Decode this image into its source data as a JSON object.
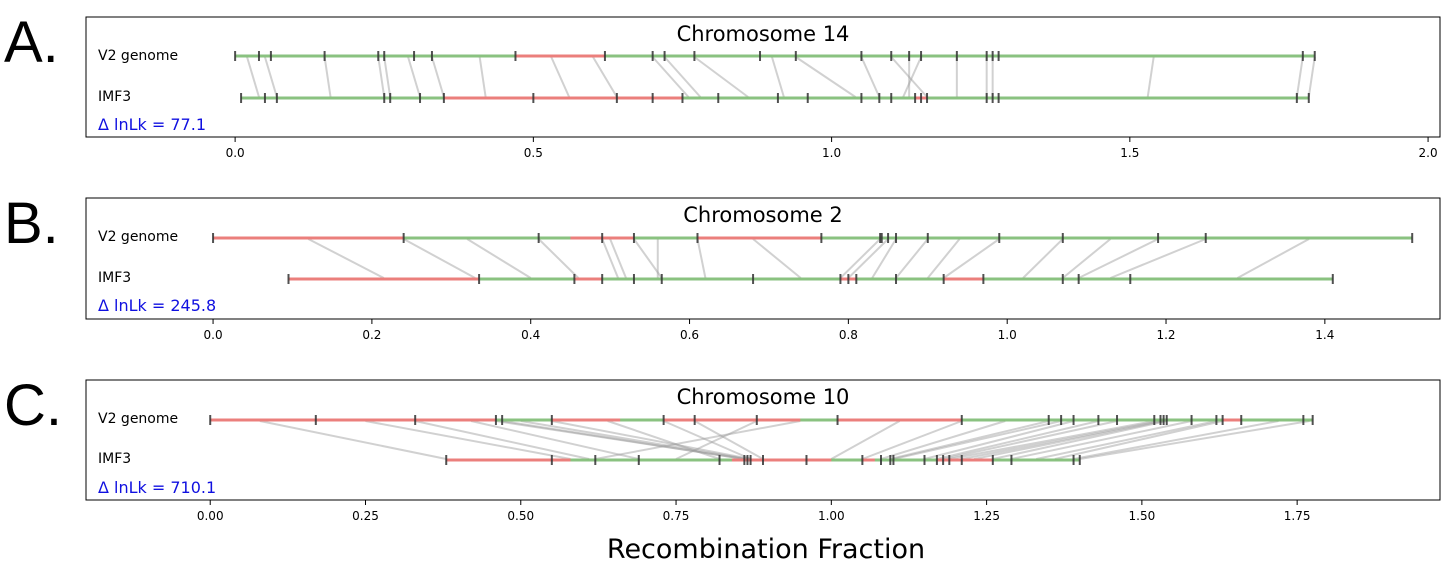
{
  "xlabel": "Recombination Fraction",
  "colors": {
    "agree": "#7dbb72",
    "disagree": "#f07b7b",
    "link": "#999999",
    "marker": "#333333",
    "lnlk": "#1010e0"
  },
  "chart_data": [
    {
      "type": "linkage-map-comparison",
      "panel": "A.",
      "title": "Chromosome 14",
      "row_labels": [
        "V2  genome",
        "IMF3"
      ],
      "lnlk_text": "Δ lnLk = 77.1",
      "xlim": [
        -0.25,
        2.02
      ],
      "xticks": [
        0.0,
        0.5,
        1.0,
        1.5,
        2.0
      ],
      "tick_labels": [
        "0.0",
        "0.5",
        "1.0",
        "1.5",
        "2.0"
      ],
      "top_markers": [
        0.0,
        0.04,
        0.06,
        0.15,
        0.24,
        0.25,
        0.3,
        0.33,
        0.47,
        0.62,
        0.7,
        0.72,
        0.77,
        0.88,
        0.94,
        1.05,
        1.1,
        1.13,
        1.15,
        1.21,
        1.26,
        1.27,
        1.28,
        1.79,
        1.81
      ],
      "bottom_markers": [
        0.01,
        0.05,
        0.07,
        0.25,
        0.26,
        0.31,
        0.35,
        0.5,
        0.64,
        0.7,
        0.75,
        0.81,
        0.91,
        0.96,
        1.05,
        1.08,
        1.1,
        1.14,
        1.15,
        1.16,
        1.26,
        1.27,
        1.28,
        1.78,
        1.8
      ],
      "top_red": [
        [
          0.47,
          0.62
        ]
      ],
      "bottom_red": [
        [
          0.35,
          0.75
        ],
        [
          1.14,
          1.16
        ]
      ],
      "links": [
        [
          0.02,
          0.04
        ],
        [
          0.05,
          0.07
        ],
        [
          0.15,
          0.16
        ],
        [
          0.24,
          0.25
        ],
        [
          0.25,
          0.26
        ],
        [
          0.29,
          0.31
        ],
        [
          0.33,
          0.35
        ],
        [
          0.41,
          0.42
        ],
        [
          0.53,
          0.56
        ],
        [
          0.6,
          0.64
        ],
        [
          0.7,
          0.76
        ],
        [
          0.72,
          0.78
        ],
        [
          0.77,
          0.86
        ],
        [
          0.9,
          0.92
        ],
        [
          0.94,
          1.04
        ],
        [
          1.05,
          1.08
        ],
        [
          1.1,
          1.16
        ],
        [
          1.13,
          1.13
        ],
        [
          1.15,
          1.12
        ],
        [
          1.21,
          1.21
        ],
        [
          1.26,
          1.26
        ],
        [
          1.27,
          1.27
        ],
        [
          1.54,
          1.53
        ],
        [
          1.79,
          1.78
        ],
        [
          1.81,
          1.8
        ]
      ]
    },
    {
      "type": "linkage-map-comparison",
      "panel": "B.",
      "title": "Chromosome 2",
      "row_labels": [
        "V2  genome",
        "IMF3"
      ],
      "lnlk_text": "Δ lnLk = 245.8",
      "xlim": [
        -0.16,
        1.545
      ],
      "xticks": [
        0.0,
        0.2,
        0.4,
        0.6,
        0.8,
        1.0,
        1.2,
        1.4
      ],
      "tick_labels": [
        "0.0",
        "0.2",
        "0.4",
        "0.6",
        "0.8",
        "1.0",
        "1.2",
        "1.4"
      ],
      "top_markers": [
        0.0,
        0.24,
        0.41,
        0.49,
        0.53,
        0.61,
        0.766,
        0.84,
        0.842,
        0.85,
        0.86,
        0.9,
        0.99,
        1.07,
        1.19,
        1.25,
        1.51
      ],
      "bottom_markers": [
        0.095,
        0.335,
        0.455,
        0.49,
        0.53,
        0.565,
        0.68,
        0.79,
        0.8,
        0.81,
        0.86,
        0.92,
        0.97,
        1.07,
        1.09,
        1.155,
        1.41
      ],
      "top_red": [
        [
          0.0,
          0.24
        ],
        [
          0.45,
          0.53
        ],
        [
          0.61,
          0.766
        ]
      ],
      "bottom_red": [
        [
          0.095,
          0.335
        ],
        [
          0.455,
          0.49
        ],
        [
          0.79,
          0.81
        ],
        [
          0.92,
          0.97
        ]
      ],
      "links": [
        [
          0.12,
          0.215
        ],
        [
          0.24,
          0.33
        ],
        [
          0.32,
          0.4
        ],
        [
          0.41,
          0.46
        ],
        [
          0.49,
          0.51
        ],
        [
          0.5,
          0.52
        ],
        [
          0.53,
          0.565
        ],
        [
          0.56,
          0.56
        ],
        [
          0.61,
          0.62
        ],
        [
          0.68,
          0.74
        ],
        [
          0.84,
          0.79
        ],
        [
          0.85,
          0.8
        ],
        [
          0.86,
          0.83
        ],
        [
          0.9,
          0.86
        ],
        [
          0.94,
          0.9
        ],
        [
          0.99,
          0.92
        ],
        [
          1.07,
          1.02
        ],
        [
          1.13,
          1.07
        ],
        [
          1.19,
          1.09
        ],
        [
          1.25,
          1.13
        ],
        [
          1.38,
          1.29
        ]
      ]
    },
    {
      "type": "linkage-map-comparison",
      "panel": "C.",
      "title": "Chromosome 10",
      "row_labels": [
        "V2  genome",
        "IMF3"
      ],
      "lnlk_text": "Δ lnLk = 710.1",
      "xlim": [
        -0.2,
        1.98
      ],
      "xticks": [
        0.0,
        0.25,
        0.5,
        0.75,
        1.0,
        1.25,
        1.5,
        1.75
      ],
      "tick_labels": [
        "0.00",
        "0.25",
        "0.50",
        "0.75",
        "1.00",
        "1.25",
        "1.50",
        "1.75"
      ],
      "top_markers": [
        0.0,
        0.17,
        0.33,
        0.46,
        0.47,
        0.55,
        0.73,
        0.78,
        0.88,
        1.01,
        1.21,
        1.35,
        1.37,
        1.39,
        1.43,
        1.46,
        1.52,
        1.53,
        1.535,
        1.54,
        1.58,
        1.62,
        1.63,
        1.66,
        1.76,
        1.775
      ],
      "bottom_markers": [
        0.38,
        0.55,
        0.62,
        0.69,
        0.82,
        0.86,
        0.865,
        0.87,
        0.89,
        0.96,
        1.05,
        1.08,
        1.095,
        1.1,
        1.15,
        1.17,
        1.18,
        1.19,
        1.21,
        1.26,
        1.29,
        1.39,
        1.4
      ],
      "top_red": [
        [
          0.0,
          0.46
        ],
        [
          0.55,
          0.66
        ],
        [
          0.73,
          0.95
        ],
        [
          1.01,
          1.21
        ],
        [
          1.63,
          1.66
        ]
      ],
      "bottom_red": [
        [
          0.38,
          0.58
        ],
        [
          0.84,
          1.0
        ],
        [
          1.05,
          1.07
        ],
        [
          1.17,
          1.26
        ]
      ],
      "links": [
        [
          0.08,
          0.38
        ],
        [
          0.25,
          0.58
        ],
        [
          0.33,
          0.61
        ],
        [
          0.42,
          0.69
        ],
        [
          0.46,
          0.86
        ],
        [
          0.47,
          0.86
        ],
        [
          0.5,
          0.865
        ],
        [
          0.55,
          0.87
        ],
        [
          0.64,
          0.82
        ],
        [
          0.73,
          0.87
        ],
        [
          0.78,
          0.89
        ],
        [
          0.88,
          0.75
        ],
        [
          0.95,
          0.62
        ],
        [
          1.11,
          1.0
        ],
        [
          1.21,
          1.05
        ],
        [
          1.28,
          1.08
        ],
        [
          1.35,
          1.095
        ],
        [
          1.37,
          1.1
        ],
        [
          1.39,
          1.15
        ],
        [
          1.43,
          1.17
        ],
        [
          1.46,
          1.18
        ],
        [
          1.52,
          1.19
        ],
        [
          1.53,
          1.21
        ],
        [
          1.535,
          1.23
        ],
        [
          1.54,
          1.26
        ],
        [
          1.58,
          1.29
        ],
        [
          1.62,
          1.33
        ],
        [
          1.63,
          1.36
        ],
        [
          1.72,
          1.39
        ],
        [
          1.77,
          1.4
        ]
      ]
    }
  ]
}
